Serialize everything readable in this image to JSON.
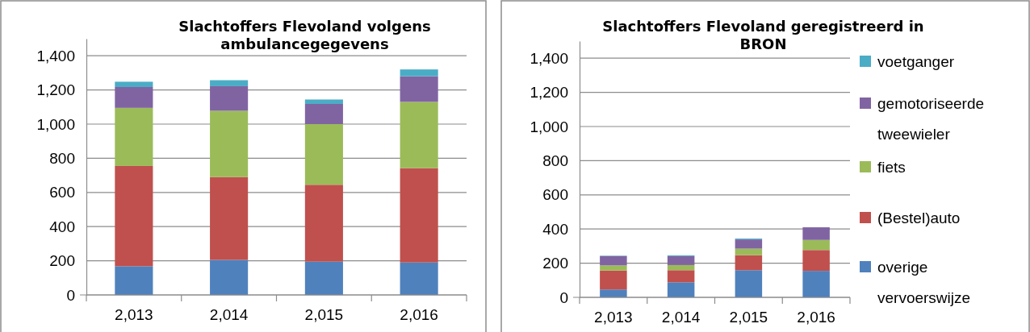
{
  "chart_data": [
    {
      "type": "bar",
      "title": "Slachtoffers Flevoland volgens ambulancegegevens",
      "categories": [
        "2,013",
        "2,014",
        "2,015",
        "2,016"
      ],
      "stacked": true,
      "series": [
        {
          "color": "#4f81bd",
          "values": [
            168,
            205,
            195,
            190
          ]
        },
        {
          "color": "#c0504d",
          "values": [
            587,
            485,
            450,
            552
          ]
        },
        {
          "color": "#9bbb59",
          "values": [
            340,
            388,
            355,
            388
          ]
        },
        {
          "color": "#8064a2",
          "values": [
            122,
            144,
            118,
            150
          ]
        },
        {
          "color": "#4bacc6",
          "values": [
            31,
            35,
            26,
            40
          ]
        }
      ],
      "ylim": [
        0,
        1500
      ],
      "yticks": [
        {
          "value": 0,
          "label": "0"
        },
        {
          "value": 200,
          "label": "200"
        },
        {
          "value": 400,
          "label": "400"
        },
        {
          "value": 600,
          "label": "600"
        },
        {
          "value": 800,
          "label": "800"
        },
        {
          "value": 1000,
          "label": "1,000"
        },
        {
          "value": 1200,
          "label": "1,200"
        },
        {
          "value": 1400,
          "label": "1,400"
        }
      ],
      "grid": "y",
      "legend": false
    },
    {
      "type": "bar",
      "title": "Slachtoffers Flevoland geregistreerd in BRON",
      "categories": [
        "2,013",
        "2,014",
        "2,015",
        "2,016"
      ],
      "stacked": true,
      "series": [
        {
          "name": "overige vervoerswijze",
          "color": "#4f81bd",
          "values": [
            46,
            88,
            159,
            155
          ]
        },
        {
          "name": "(Bestel)auto",
          "color": "#c0504d",
          "values": [
            111,
            71,
            88,
            122
          ]
        },
        {
          "name": "fiets",
          "color": "#9bbb59",
          "values": [
            30,
            30,
            38,
            59
          ]
        },
        {
          "name": "gemotoriseerde tweewieler",
          "color": "#8064a2",
          "values": [
            55,
            52,
            54,
            74
          ]
        },
        {
          "name": "voetganger",
          "color": "#4bacc6",
          "values": [
            2,
            5,
            5,
            null
          ]
        }
      ],
      "ylim": [
        0,
        1500
      ],
      "yticks": [
        {
          "value": 0,
          "label": "0"
        },
        {
          "value": 200,
          "label": "200"
        },
        {
          "value": 400,
          "label": "400"
        },
        {
          "value": 600,
          "label": "600"
        },
        {
          "value": 800,
          "label": "800"
        },
        {
          "value": 1000,
          "label": "1,000"
        },
        {
          "value": 1200,
          "label": "1,200"
        },
        {
          "value": 1400,
          "label": "1,400"
        }
      ],
      "grid": "y",
      "legend": "right"
    }
  ]
}
